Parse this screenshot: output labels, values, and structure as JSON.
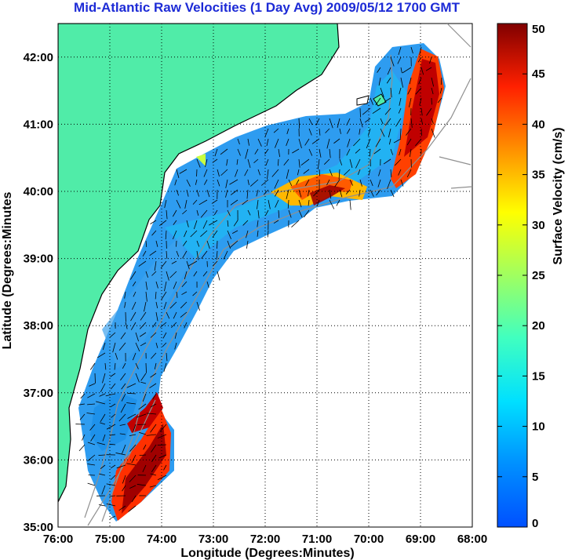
{
  "title": "Mid-Atlantic Raw Velocities (1 Day Avg) 2009/05/12 1700 GMT",
  "map": {
    "xlabel": "Longitude (Degrees:Minutes)",
    "ylabel": "Latitude (Degrees:Minutes",
    "x_ticks": [
      "76:00",
      "75:00",
      "74:00",
      "73:00",
      "72:00",
      "71:00",
      "70:00",
      "69:00",
      "68:00"
    ],
    "y_ticks": [
      "35:00",
      "36:00",
      "37:00",
      "38:00",
      "39:00",
      "40:00",
      "41:00",
      "42:00"
    ],
    "lon_range": [
      -76,
      -68
    ],
    "lat_range": [
      35,
      42.5
    ],
    "grid": "dotted",
    "colors": {
      "land": "#50eca8",
      "coast": "#000000",
      "bathymetry": "#909090"
    }
  },
  "colorbar": {
    "label": "Surface Velocity (cm/s)",
    "ticks": [
      "0",
      "5",
      "10",
      "15",
      "20",
      "25",
      "30",
      "35",
      "40",
      "45",
      "50"
    ],
    "range": [
      0,
      50
    ],
    "colormap": "jet"
  }
}
